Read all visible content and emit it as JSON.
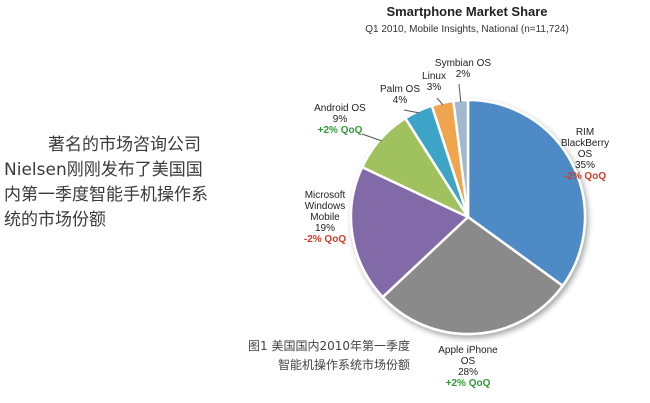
{
  "intro": {
    "lines": [
      "著名的市场咨询公司",
      "Nielsen刚刚发布了美国国",
      "内第一季度智能手机操作系",
      "统的市场份额"
    ]
  },
  "caption": {
    "lines": [
      "图1 美国国内2010年第一季度",
      "智能机操作系统市场份额"
    ]
  },
  "colors": {
    "rim": "#4d8ac6",
    "apple": "#8a8a8a",
    "windows": "#8269a8",
    "android": "#9fc25e",
    "palm": "#3da4c8",
    "linux": "#f0a44e",
    "symbian": "#a3b8cf",
    "positive": "#2e9a36",
    "negative": "#d23b25"
  },
  "chart_data": {
    "type": "pie",
    "title": "Smartphone Market Share",
    "subtitle": "Q1 2010, Mobile Insights, National (n=11,724)",
    "series": [
      {
        "name": "RIM BlackBerry OS",
        "label_lines": [
          "RIM",
          "BlackBerry",
          "OS"
        ],
        "value": 35,
        "value_text": "35%",
        "change": "-2% QoQ",
        "color_key": "rim"
      },
      {
        "name": "Apple iPhone OS",
        "label_lines": [
          "Apple iPhone",
          "OS"
        ],
        "value": 28,
        "value_text": "28%",
        "change": "+2% QoQ",
        "color_key": "apple"
      },
      {
        "name": "Microsoft Windows Mobile",
        "label_lines": [
          "Microsoft",
          "Windows",
          "Mobile"
        ],
        "value": 19,
        "value_text": "19%",
        "change": "-2% QoQ",
        "color_key": "windows"
      },
      {
        "name": "Android OS",
        "label_lines": [
          "Android OS"
        ],
        "value": 9,
        "value_text": "9%",
        "change": "+2% QoQ",
        "color_key": "android"
      },
      {
        "name": "Palm OS",
        "label_lines": [
          "Palm OS"
        ],
        "value": 4,
        "value_text": "4%",
        "change": "",
        "color_key": "palm"
      },
      {
        "name": "Linux",
        "label_lines": [
          "Linux"
        ],
        "value": 3,
        "value_text": "3%",
        "change": "",
        "color_key": "linux"
      },
      {
        "name": "Symbian OS",
        "label_lines": [
          "Symbian OS"
        ],
        "value": 2,
        "value_text": "2%",
        "change": "",
        "color_key": "symbian"
      }
    ]
  }
}
